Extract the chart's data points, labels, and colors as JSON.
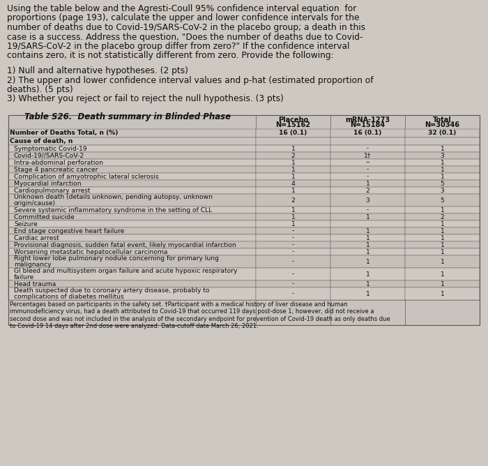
{
  "background_color": "#cdc8c0",
  "intro_text_lines": [
    "Using the table below and the Agresti-Coull 95% confidence interval equation  for",
    "proportions (page 193), calculate the upper and lower confidence intervals for the",
    "number of deaths due to Covid-19/SARS-CoV-2 in the placebo group; a death in this",
    "case is a success. Address the question, \"Does the number of deaths due to Covid-",
    "19/SARS-CoV-2 in the placebo group differ from zero?\" If the confidence interval",
    "contains zero, it is not statistically different from zero. Provide the following:"
  ],
  "items_lines": [
    "1) Null and alternative hypotheses. (2 pts)",
    "2) The upper and lower confidence interval values and p-hat (estimated proportion of",
    "deaths). (5 pts)",
    "3) Whether you reject or fail to reject the null hypothesis. (3 pts)"
  ],
  "table_title": "Table S26.  Death summary in Blinded Phase",
  "col_headers_line1": [
    "Placebo",
    "mRNA-1273",
    "Total"
  ],
  "col_headers_line2": [
    "N=15162",
    "N=15184",
    "N=30346"
  ],
  "row1_label": "Number of Deaths Total, n (%)",
  "row1_vals": [
    "16 (0.1)",
    "16 (0.1)",
    "32 (0.1)"
  ],
  "row2_label": "Cause of death, n",
  "data_rows": [
    [
      "Symptomatic Covid-19",
      "1",
      "-",
      "1"
    ],
    [
      "Covid-19//SARS-CoV-2",
      "2",
      "1†",
      "3"
    ],
    [
      "Intra-abdominal perforation",
      "1",
      "--",
      "1"
    ],
    [
      "Stage 4 pancreatic cancer",
      "1",
      "-",
      "1"
    ],
    [
      "Complication of amyotrophic lateral sclerosis",
      "1",
      "-",
      "1"
    ],
    [
      "Myocardial infarction",
      "4",
      "1",
      "5"
    ],
    [
      "Cardiopulmonary arrest",
      "1",
      "2",
      "3"
    ],
    [
      "Unknown death (details unknown, pending autopsy, unknown\norigin/cause)",
      "2",
      "3",
      "5"
    ],
    [
      "Severe systemic inflammatory syndrome in the setting of CLL",
      "1",
      "-",
      "1"
    ],
    [
      "Committed suicide",
      "1",
      "1",
      "2"
    ],
    [
      "Seizure",
      "1",
      "",
      "1"
    ],
    [
      "End stage congestive heart failure",
      "-",
      "1",
      "1"
    ],
    [
      "Cardiac arrest",
      "-",
      "1",
      "1"
    ],
    [
      "Provisional diagnosis, sudden fatal event, likely myocardial infarction",
      "-",
      "1",
      "1"
    ],
    [
      "Worsening metastatic hepatocellular carcinoma",
      "-",
      "1",
      "1"
    ],
    [
      "Right lower lobe pulmonary nodule concerning for primary lung\nmalignancy",
      "-",
      "1",
      "1"
    ],
    [
      "GI bleed and multisystem organ failure and acute hypoxic respiratory\nfailure",
      "-",
      "1",
      "1"
    ],
    [
      "Head trauma",
      "-",
      "1",
      "1"
    ],
    [
      "Death suspected due to coronary artery disease, probably to\ncomplications of diabetes mellitus",
      "-",
      "1",
      "1"
    ]
  ],
  "footnote_lines": [
    "Percentages based on participants in the safety set. †Participant with a medical history of liver disease and human",
    "immunodeficiency virus, had a death attributed to Covid-19 that occurred 119 days post-dose 1; however, did not receive a",
    "second dose and was not included in the analysis of the secondary endpoint for prevention of Covid-19 death as only deaths due",
    "to Covid-19 14 days after 2nd dose were analyzed. Data-cutoff date March 26, 2021."
  ],
  "table_bg": "#d0cbc4",
  "header_bg": "#c8c3bc",
  "row_bg_even": "#cfc9c2",
  "row_bg_odd": "#c5c0b8",
  "row1_bg": "#c8c3bc",
  "row2_bg": "#cac5be",
  "footnote_bg": "#c8c3bc",
  "border_color": "#555555",
  "text_color": "#111111"
}
